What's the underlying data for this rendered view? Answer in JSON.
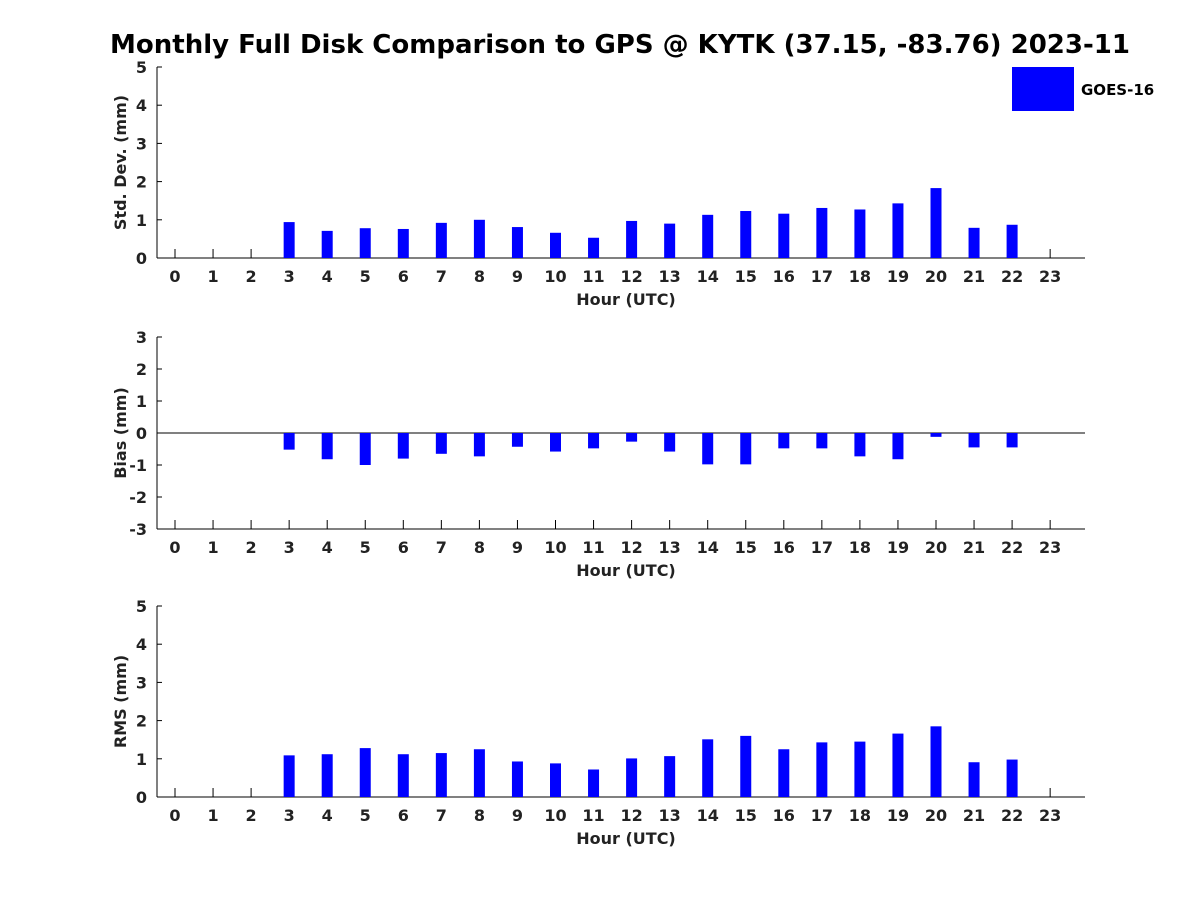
{
  "figure": {
    "title": "Monthly Full Disk Comparison to GPS @ KYTK (37.15, -83.76) 2023-11",
    "legend": {
      "label": "GOES-16",
      "color": "#0000ff"
    }
  },
  "chart_data": [
    {
      "type": "bar",
      "title": "Monthly Full Disk Comparison to GPS @ KYTK (37.15, -83.76) 2023-11",
      "xlabel": "Hour (UTC)",
      "ylabel": "Std. Dev. (mm)",
      "ylim": [
        0,
        5
      ],
      "yticks": [
        "0",
        "1",
        "2",
        "3",
        "4",
        "5"
      ],
      "categories": [
        "0",
        "1",
        "2",
        "3",
        "4",
        "5",
        "6",
        "7",
        "8",
        "9",
        "10",
        "11",
        "12",
        "13",
        "14",
        "15",
        "16",
        "17",
        "18",
        "19",
        "20",
        "21",
        "22",
        "23"
      ],
      "series": [
        {
          "name": "GOES-16",
          "color": "#0000ff",
          "values": [
            null,
            null,
            null,
            0.94,
            0.71,
            0.78,
            0.76,
            0.92,
            1.0,
            0.81,
            0.66,
            0.53,
            0.97,
            0.9,
            1.13,
            1.23,
            1.16,
            1.31,
            1.27,
            1.43,
            1.83,
            0.79,
            0.87,
            null
          ]
        }
      ],
      "legend": "top-right",
      "grid": false
    },
    {
      "type": "bar",
      "xlabel": "Hour (UTC)",
      "ylabel": "Bias (mm)",
      "ylim": [
        -3,
        3
      ],
      "yticks": [
        "-3",
        "-2",
        "-1",
        "0",
        "1",
        "2",
        "3"
      ],
      "categories": [
        "0",
        "1",
        "2",
        "3",
        "4",
        "5",
        "6",
        "7",
        "8",
        "9",
        "10",
        "11",
        "12",
        "13",
        "14",
        "15",
        "16",
        "17",
        "18",
        "19",
        "20",
        "21",
        "22",
        "23"
      ],
      "series": [
        {
          "name": "GOES-16",
          "color": "#0000ff",
          "values": [
            null,
            null,
            null,
            -0.52,
            -0.82,
            -1.0,
            -0.8,
            -0.65,
            -0.73,
            -0.43,
            -0.58,
            -0.48,
            -0.27,
            -0.58,
            -0.98,
            -0.98,
            -0.48,
            -0.48,
            -0.73,
            -0.82,
            -0.12,
            -0.45,
            -0.45,
            null
          ]
        }
      ],
      "zero_line": true,
      "grid": false
    },
    {
      "type": "bar",
      "xlabel": "Hour (UTC)",
      "ylabel": "RMS (mm)",
      "ylim": [
        0,
        5
      ],
      "yticks": [
        "0",
        "1",
        "2",
        "3",
        "4",
        "5"
      ],
      "categories": [
        "0",
        "1",
        "2",
        "3",
        "4",
        "5",
        "6",
        "7",
        "8",
        "9",
        "10",
        "11",
        "12",
        "13",
        "14",
        "15",
        "16",
        "17",
        "18",
        "19",
        "20",
        "21",
        "22",
        "23"
      ],
      "series": [
        {
          "name": "GOES-16",
          "color": "#0000ff",
          "values": [
            null,
            null,
            null,
            1.09,
            1.12,
            1.28,
            1.12,
            1.15,
            1.25,
            0.93,
            0.88,
            0.72,
            1.01,
            1.07,
            1.51,
            1.6,
            1.25,
            1.43,
            1.45,
            1.66,
            1.85,
            0.91,
            0.98,
            null
          ]
        }
      ],
      "grid": false
    }
  ]
}
